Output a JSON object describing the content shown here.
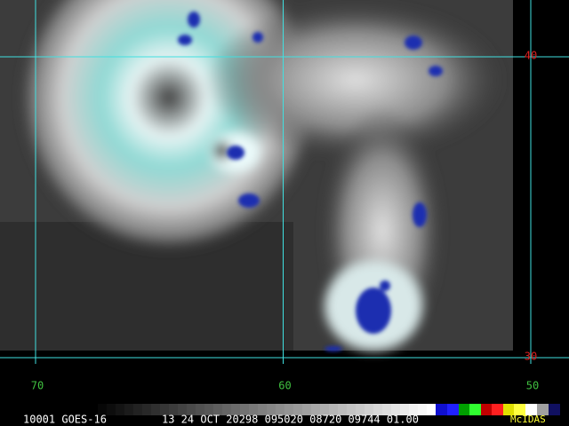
{
  "grid": {
    "latitudes": [
      40,
      30
    ],
    "longitudes": [
      70,
      60,
      50
    ]
  },
  "footer": {
    "station": "10001 GOES-16",
    "timestamp": "13 24 OCT 20298 095020 08720 09744 01.00",
    "brand": "McIDAS"
  }
}
